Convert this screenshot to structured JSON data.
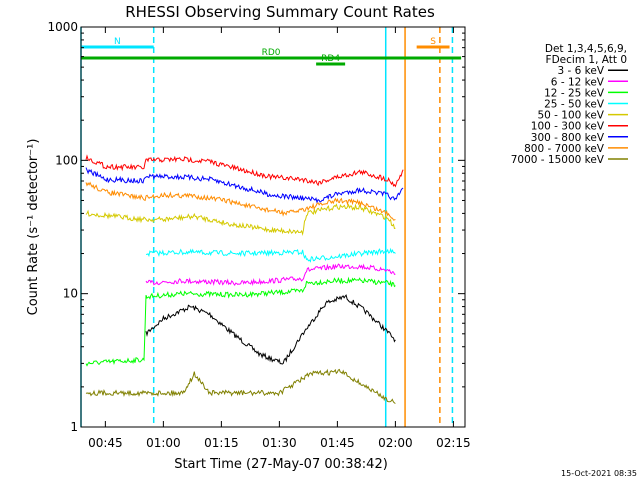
{
  "chart_data": {
    "type": "line",
    "title": "RHESSI Observing Summary Count Rates",
    "xlabel": "Start Time (27-May-07 00:38:42)",
    "ylabel": "Count Rate (s⁻¹ detector⁻¹)",
    "ylog": true,
    "ylim": [
      1,
      1000
    ],
    "xlim": [
      "00:38:42",
      "02:18:00"
    ],
    "x_ticks": [
      "00:45",
      "01:00",
      "01:15",
      "01:30",
      "01:45",
      "02:00",
      "02:15"
    ],
    "y_ticks": [
      "1",
      "10",
      "100",
      "1000"
    ],
    "legend_header": [
      "Det 1,3,4,5,6,9,",
      "FDecim 1, Att 0"
    ],
    "legend_position": "right",
    "timestamp": "15-Oct-2021 08:35",
    "annotations": [
      {
        "text": "N",
        "color": "#00e5ff",
        "x_start": "00:38:42",
        "x_end": "00:57:30",
        "level": "top"
      },
      {
        "text": "S",
        "color": "#ff8c00",
        "x_start": "02:05:30",
        "x_end": "02:14:00",
        "level": "top"
      },
      {
        "text": "RD0",
        "color": "#00aa00",
        "x_start": "00:38:42",
        "x_end": "02:17:00",
        "level": "middle"
      },
      {
        "text": "RD4",
        "color": "#00aa00",
        "x_start": "01:39:30",
        "x_end": "01:47:00",
        "level": "lower"
      }
    ],
    "vlines": [
      {
        "time": "00:38:42",
        "color": "#00e5ff",
        "style": "solid"
      },
      {
        "time": "00:57:30",
        "color": "#00e5ff",
        "style": "dashed"
      },
      {
        "time": "01:57:30",
        "color": "#00e5ff",
        "style": "solid"
      },
      {
        "time": "02:02:30",
        "color": "#ff8c00",
        "style": "solid"
      },
      {
        "time": "02:11:30",
        "color": "#ff8c00",
        "style": "dashed"
      },
      {
        "time": "02:14:45",
        "color": "#00e5ff",
        "style": "dashed"
      }
    ],
    "series": [
      {
        "name": "3 - 6 keV",
        "color": "#000000",
        "points": [
          [
            "00:55:30",
            5
          ],
          [
            "01:00",
            6.5
          ],
          [
            "01:07",
            8
          ],
          [
            "01:12",
            7
          ],
          [
            "01:18",
            5
          ],
          [
            "01:25",
            3.5
          ],
          [
            "01:31",
            3
          ],
          [
            "01:36",
            5
          ],
          [
            "01:42",
            8.5
          ],
          [
            "01:47",
            9.5
          ],
          [
            "01:52",
            7.5
          ],
          [
            "01:57",
            5.5
          ],
          [
            "02:00",
            4.5
          ]
        ]
      },
      {
        "name": "6 - 12 keV",
        "color": "#ff00ff",
        "points": [
          [
            "00:55:30",
            12
          ],
          [
            "01:05",
            12.5
          ],
          [
            "01:20",
            12
          ],
          [
            "01:36",
            13
          ],
          [
            "01:37",
            15
          ],
          [
            "01:45",
            16
          ],
          [
            "01:51",
            16
          ],
          [
            "01:58",
            15
          ],
          [
            "02:00",
            14
          ]
        ]
      },
      {
        "name": "12 - 25 keV",
        "color": "#00ff00",
        "points": [
          [
            "00:40",
            3
          ],
          [
            "00:55",
            3.2
          ],
          [
            "00:55:30",
            9.5
          ],
          [
            "01:05",
            10
          ],
          [
            "01:20",
            9.8
          ],
          [
            "01:36",
            10.5
          ],
          [
            "01:37",
            12
          ],
          [
            "01:45",
            12.5
          ],
          [
            "01:51",
            12.5
          ],
          [
            "01:58",
            12
          ],
          [
            "02:00",
            11.5
          ]
        ]
      },
      {
        "name": "25 - 50 keV",
        "color": "#00ffff",
        "points": [
          [
            "00:55:30",
            20
          ],
          [
            "01:05",
            20.5
          ],
          [
            "01:20",
            20
          ],
          [
            "01:36",
            20.5
          ],
          [
            "01:37",
            18
          ],
          [
            "01:45",
            19
          ],
          [
            "01:51",
            20
          ],
          [
            "01:58",
            21
          ],
          [
            "02:00",
            20
          ]
        ]
      },
      {
        "name": "50 - 100 keV",
        "color": "#d4c900",
        "points": [
          [
            "00:40",
            40
          ],
          [
            "00:55",
            36
          ],
          [
            "01:00",
            36
          ],
          [
            "01:08",
            38
          ],
          [
            "01:18",
            33
          ],
          [
            "01:28",
            30
          ],
          [
            "01:36",
            29
          ],
          [
            "01:37",
            40
          ],
          [
            "01:45",
            45
          ],
          [
            "01:51",
            44
          ],
          [
            "01:58",
            37
          ],
          [
            "02:00",
            31
          ]
        ]
      },
      {
        "name": "100 - 300 keV",
        "color": "#ff0000",
        "points": [
          [
            "00:40",
            105
          ],
          [
            "00:45",
            90
          ],
          [
            "00:55",
            88
          ],
          [
            "00:55:30",
            100
          ],
          [
            "01:05",
            102
          ],
          [
            "01:12",
            98
          ],
          [
            "01:20",
            85
          ],
          [
            "01:28",
            75
          ],
          [
            "01:36",
            72
          ],
          [
            "01:40",
            68
          ],
          [
            "01:45",
            75
          ],
          [
            "01:51",
            82
          ],
          [
            "01:58",
            72
          ],
          [
            "02:00",
            65
          ],
          [
            "02:02",
            85
          ]
        ]
      },
      {
        "name": "300 - 800 keV",
        "color": "#0000ff",
        "points": [
          [
            "00:40",
            85
          ],
          [
            "00:45",
            72
          ],
          [
            "00:55",
            70
          ],
          [
            "00:55:30",
            76
          ],
          [
            "01:05",
            75
          ],
          [
            "01:12",
            72
          ],
          [
            "01:20",
            63
          ],
          [
            "01:28",
            55
          ],
          [
            "01:36",
            52
          ],
          [
            "01:40",
            50
          ],
          [
            "01:45",
            56
          ],
          [
            "01:51",
            60
          ],
          [
            "01:58",
            55
          ],
          [
            "02:00",
            50
          ],
          [
            "02:02",
            62
          ]
        ]
      },
      {
        "name": "800 - 7000 keV",
        "color": "#ff8c00",
        "points": [
          [
            "00:40",
            68
          ],
          [
            "00:45",
            58
          ],
          [
            "00:55",
            52
          ],
          [
            "01:00",
            55
          ],
          [
            "01:08",
            54
          ],
          [
            "01:16",
            50
          ],
          [
            "01:24",
            44
          ],
          [
            "01:32",
            40
          ],
          [
            "01:40",
            46
          ],
          [
            "01:45",
            50
          ],
          [
            "01:51",
            48
          ],
          [
            "01:58",
            40
          ],
          [
            "02:00",
            36
          ]
        ]
      },
      {
        "name": "7000 - 15000 keV",
        "color": "#808000",
        "points": [
          [
            "00:40",
            1.8
          ],
          [
            "00:55",
            1.8
          ],
          [
            "01:05",
            1.8
          ],
          [
            "01:08",
            2.5
          ],
          [
            "01:12",
            1.8
          ],
          [
            "01:30",
            1.8
          ],
          [
            "01:38",
            2.5
          ],
          [
            "01:46",
            2.6
          ],
          [
            "01:55",
            1.8
          ],
          [
            "02:00",
            1.5
          ]
        ]
      }
    ]
  }
}
